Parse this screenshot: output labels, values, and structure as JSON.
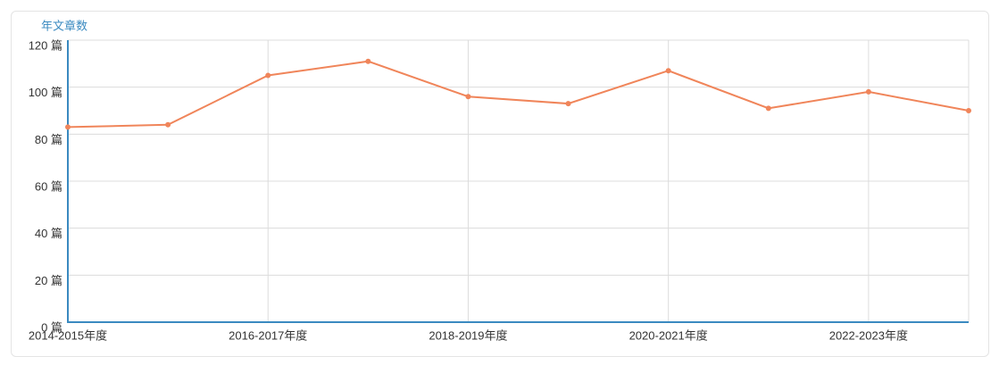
{
  "chart_data": {
    "type": "line",
    "y_axis_title": "年文章数",
    "categories": [
      "2014-2015年度",
      null,
      "2016-2017年度",
      null,
      "2018-2019年度",
      null,
      "2020-2021年度",
      null,
      "2022-2023年度",
      null
    ],
    "values": [
      83,
      84,
      105,
      111,
      96,
      93,
      107,
      91,
      98,
      90
    ],
    "color": "#f0855a",
    "ylim": [
      0,
      120
    ],
    "yticks": [
      {
        "value": 0,
        "label": "0 篇"
      },
      {
        "value": 20,
        "label": "20 篇"
      },
      {
        "value": 40,
        "label": "40 篇"
      },
      {
        "value": 60,
        "label": "60 篇"
      },
      {
        "value": 80,
        "label": "80 篇"
      },
      {
        "value": 100,
        "label": "100 篇"
      },
      {
        "value": 120,
        "label": "120 篇"
      }
    ],
    "grid": true
  }
}
